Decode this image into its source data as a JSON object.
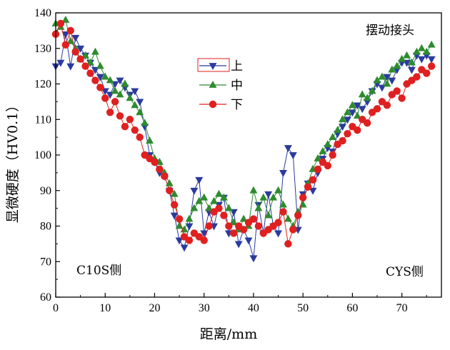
{
  "chart_data": {
    "type": "scatter",
    "title": "",
    "xlabel": "距离/mm",
    "ylabel": "显微硬度（HV0.1）",
    "xlim": [
      0,
      78
    ],
    "ylim": [
      60,
      140
    ],
    "xticks": [
      0,
      10,
      20,
      30,
      40,
      50,
      60,
      70
    ],
    "yticks": [
      60,
      70,
      80,
      90,
      100,
      110,
      120,
      130,
      140
    ],
    "grid": false,
    "legend_position": "upper-center",
    "annotations": {
      "top_right": "摆动接头",
      "left": "C10S侧",
      "right": "CYS侧"
    },
    "series": [
      {
        "name": "上",
        "color": "#2a3b9e",
        "marker": "triangle-down",
        "x": [
          0,
          1,
          2,
          3,
          4,
          5,
          6,
          7,
          8,
          9,
          10,
          11,
          12,
          13,
          14,
          15,
          16,
          17,
          18,
          19,
          20,
          21,
          22,
          23,
          24,
          25,
          26,
          27,
          28,
          29,
          30,
          31,
          32,
          33,
          34,
          35,
          36,
          37,
          38,
          39,
          40,
          41,
          42,
          43,
          44,
          45,
          46,
          47,
          48,
          49,
          50,
          51,
          52,
          53,
          54,
          55,
          56,
          57,
          58,
          59,
          60,
          61,
          62,
          63,
          64,
          65,
          66,
          67,
          68,
          69,
          70,
          71,
          72,
          73,
          74,
          75,
          76
        ],
        "y": [
          125,
          126,
          134,
          125,
          133,
          130,
          128,
          126,
          124,
          122,
          118,
          117,
          120,
          121,
          119,
          117,
          118,
          115,
          108,
          100,
          98,
          95,
          94,
          90,
          83,
          76,
          74,
          80,
          90,
          93,
          78,
          84,
          80,
          86,
          88,
          78,
          84,
          75,
          79,
          76,
          71,
          86,
          78,
          89,
          80,
          78,
          95,
          102,
          100,
          79,
          89,
          92,
          90,
          95,
          99,
          102,
          101,
          106,
          108,
          110,
          112,
          114,
          113,
          115,
          118,
          120,
          119,
          122,
          121,
          124,
          126,
          126,
          124,
          128,
          127,
          128,
          127
        ]
      },
      {
        "name": "中",
        "color": "#2e8b2e",
        "marker": "triangle-up",
        "x": [
          0,
          1,
          2,
          3,
          4,
          5,
          6,
          7,
          8,
          9,
          10,
          11,
          12,
          13,
          14,
          15,
          16,
          17,
          18,
          19,
          20,
          21,
          22,
          23,
          24,
          25,
          26,
          27,
          28,
          29,
          30,
          31,
          32,
          33,
          34,
          35,
          36,
          37,
          38,
          39,
          40,
          41,
          42,
          43,
          44,
          45,
          46,
          47,
          48,
          49,
          50,
          51,
          52,
          53,
          54,
          55,
          56,
          57,
          58,
          59,
          60,
          61,
          62,
          63,
          64,
          65,
          66,
          67,
          68,
          69,
          70,
          71,
          72,
          73,
          74,
          75,
          76
        ],
        "y": [
          137,
          136,
          138,
          132,
          130,
          127,
          128,
          126,
          129,
          125,
          122,
          121,
          118,
          117,
          120,
          116,
          114,
          112,
          109,
          104,
          99,
          98,
          95,
          92,
          89,
          80,
          79,
          82,
          85,
          87,
          88,
          85,
          87,
          89,
          88,
          85,
          81,
          79,
          82,
          80,
          90,
          85,
          88,
          83,
          88,
          90,
          86,
          82,
          80,
          84,
          86,
          92,
          96,
          99,
          101,
          103,
          105,
          107,
          110,
          112,
          114,
          111,
          117,
          116,
          118,
          121,
          122,
          120,
          124,
          125,
          127,
          128,
          126,
          129,
          130,
          129,
          131
        ]
      },
      {
        "name": "下",
        "color": "#e02020",
        "marker": "circle",
        "x": [
          0,
          1,
          2,
          3,
          4,
          5,
          6,
          7,
          8,
          9,
          10,
          11,
          12,
          13,
          14,
          15,
          16,
          17,
          18,
          19,
          20,
          21,
          22,
          23,
          24,
          25,
          26,
          27,
          28,
          29,
          30,
          31,
          32,
          33,
          34,
          35,
          36,
          37,
          38,
          39,
          40,
          41,
          42,
          43,
          44,
          45,
          46,
          47,
          48,
          49,
          50,
          51,
          52,
          53,
          54,
          55,
          56,
          57,
          58,
          59,
          60,
          61,
          62,
          63,
          64,
          65,
          66,
          67,
          68,
          69,
          70,
          71,
          72,
          73,
          74,
          75,
          76
        ],
        "y": [
          134,
          137,
          131,
          135,
          129,
          127,
          125,
          123,
          121,
          119,
          116,
          112,
          115,
          111,
          108,
          110,
          107,
          105,
          100,
          99,
          98,
          96,
          94,
          90,
          86,
          82,
          77,
          76,
          78,
          77,
          76,
          80,
          84,
          85,
          83,
          80,
          78,
          80,
          79,
          81,
          82,
          80,
          78,
          79,
          80,
          81,
          84,
          75,
          79,
          83,
          88,
          91,
          93,
          96,
          98,
          97,
          100,
          103,
          104,
          106,
          108,
          107,
          110,
          109,
          112,
          113,
          115,
          114,
          117,
          118,
          116,
          120,
          121,
          122,
          124,
          123,
          125
        ]
      }
    ]
  }
}
